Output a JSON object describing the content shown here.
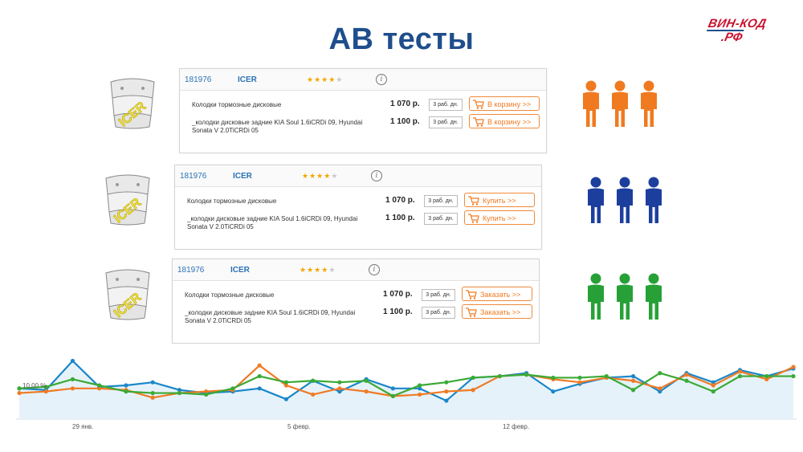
{
  "title": "АВ тесты",
  "logo": {
    "line1": "ВИН-КОД",
    "line2": ".РФ"
  },
  "colors": {
    "title": "#1f4e8c",
    "orange": "#f07a20",
    "blue": "#1c3f9e",
    "green": "#27a137",
    "link": "#2a72b5"
  },
  "variants": [
    {
      "id": "181976",
      "brand": "ICER",
      "rating": 4,
      "info_icon": "info-icon",
      "rows": [
        {
          "name": "Колодки тормозные дисковые",
          "price": "1 070 р.",
          "delivery": "3 раб. дн.",
          "button": "В корзину >>"
        },
        {
          "name": "_колодки дисковые задние KIA Soul 1.6iCRDi 09, Hyundai Sonata V 2.0TiCRDi 05",
          "price": "1 100 р.",
          "delivery": "3 раб. дн.",
          "button": "В корзину >>"
        }
      ],
      "people_color": "#f07a20",
      "people_icon": "person-icon"
    },
    {
      "id": "181976",
      "brand": "ICER",
      "rating": 4,
      "info_icon": "info-icon",
      "rows": [
        {
          "name": "Колодки тормозные дисковые",
          "price": "1 070 р.",
          "delivery": "3 раб. дн.",
          "button": "Купить >>"
        },
        {
          "name": "_колодки дисковые задние KIA Soul 1.6iCRDi 09, Hyundai Sonata V 2.0TiCRDi 05",
          "price": "1 100 р.",
          "delivery": "3 раб. дн.",
          "button": "Купить >>"
        }
      ],
      "people_color": "#1c3f9e",
      "people_icon": "person-icon"
    },
    {
      "id": "181976",
      "brand": "ICER",
      "rating": 4,
      "info_icon": "info-icon",
      "rows": [
        {
          "name": "Колодки тормозные дисковые",
          "price": "1 070 р.",
          "delivery": "3 раб. дн.",
          "button": "Заказать >>"
        },
        {
          "name": "_колодки дисковые задние KIA Soul 1.6iCRDi 09, Hyundai Sonata V 2.0TiCRDi 05",
          "price": "1 100 р.",
          "delivery": "3 раб. дн.",
          "button": "Заказать >>"
        }
      ],
      "people_color": "#27a137",
      "people_icon": "person-icon"
    }
  ],
  "chart_data": {
    "type": "line",
    "ylabel_value": "10,00 %",
    "x_ticks": [
      "29 янв.",
      "5 февр.",
      "12 февр."
    ],
    "ylim": [
      0,
      22
    ],
    "series": [
      {
        "color": "#1b87c9",
        "values": [
          10,
          9.5,
          19,
          10.5,
          11,
          12,
          9.5,
          8.5,
          9,
          10,
          6.5,
          12.5,
          9,
          13,
          10,
          10,
          6,
          13.5,
          14,
          15,
          9,
          11.5,
          13.5,
          14,
          9,
          15,
          12,
          16,
          14,
          16.5
        ]
      },
      {
        "color": "#ef7b25",
        "values": [
          8.5,
          9,
          10,
          10,
          9.5,
          7,
          8.5,
          9,
          9.5,
          17.5,
          11,
          8,
          10,
          9,
          7.5,
          8,
          9,
          9.5,
          14,
          14.5,
          13,
          12,
          13.5,
          12.5,
          10,
          14.5,
          11,
          15.5,
          13,
          17
        ]
      },
      {
        "color": "#3aaa35",
        "values": [
          10,
          10.5,
          13,
          11,
          9,
          8.5,
          8.5,
          8,
          10,
          14,
          12,
          12.5,
          12,
          12.5,
          7.5,
          11,
          12,
          13.5,
          14,
          14.5,
          13.5,
          13.5,
          14,
          9.5,
          15,
          12.5,
          9,
          14,
          14,
          14
        ]
      }
    ]
  }
}
